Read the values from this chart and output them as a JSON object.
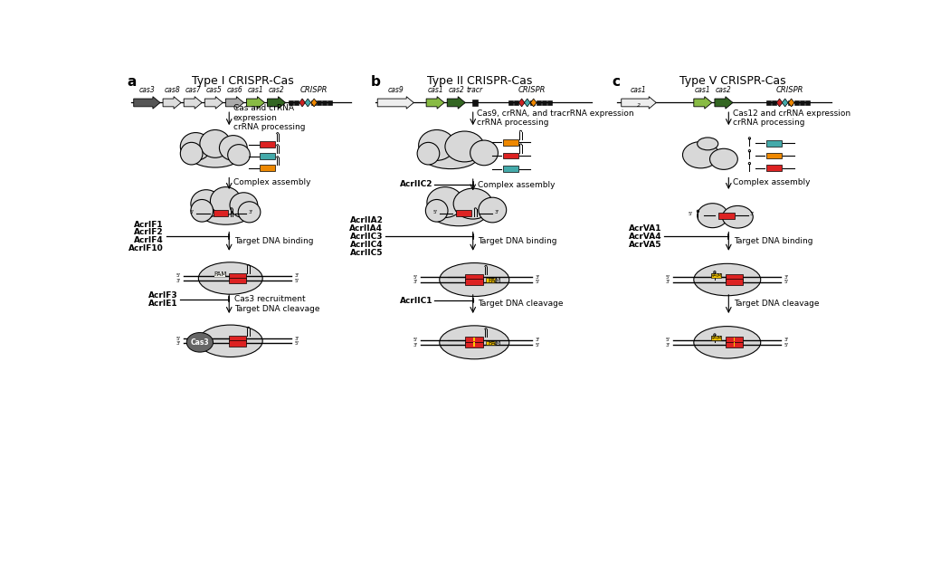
{
  "title_a": "Type I CRISPR-Cas",
  "title_b": "Type II CRISPR-Cas",
  "title_c": "Type V CRISPR-Cas",
  "label_a": "a",
  "label_b": "b",
  "label_c": "c",
  "bg_color": "#ffffff",
  "cloud_color": "#d8d8d8",
  "rna_red": "#dd2222",
  "rna_teal": "#44aaaa",
  "rna_orange": "#ee8800",
  "pam_color": "#ffcc00",
  "inhibitors_complex_b": "AcrIIC2",
  "inhibitors_bind_a": [
    "AcrIF1",
    "AcrIF2",
    "AcrIF4",
    "AcrIF10"
  ],
  "inhibitors_bind_b": [
    "AcrIIA2",
    "AcrIIA4",
    "AcrIIC3",
    "AcrIIC4",
    "AcrIIC5"
  ],
  "inhibitors_bind_c": [
    "AcrVA1",
    "AcrVA4",
    "AcrVA5"
  ],
  "inhibitors_cleave_a": [
    "AcrIF3",
    "AcrIE1"
  ],
  "inhibitors_cleave_b": [
    "AcrIIC1"
  ],
  "arrow_step1_a": "Cas and crRNA\nexpression\ncrRNA processing",
  "arrow_step1_b": "Cas9, crRNA, and tracrRNA expression\ncrRNA processing",
  "arrow_step1_c": "Cas12 and crRNA expression\ncrRNA processing",
  "arrow_complex": "Complex assembly",
  "arrow_dna_bind": "Target DNA binding",
  "arrow_cleavage_a": "Cas3 recruitment\nTarget DNA cleavage",
  "arrow_cleavage_b": "Target DNA cleavage",
  "arrow_cleavage_c": "Target DNA cleavage"
}
